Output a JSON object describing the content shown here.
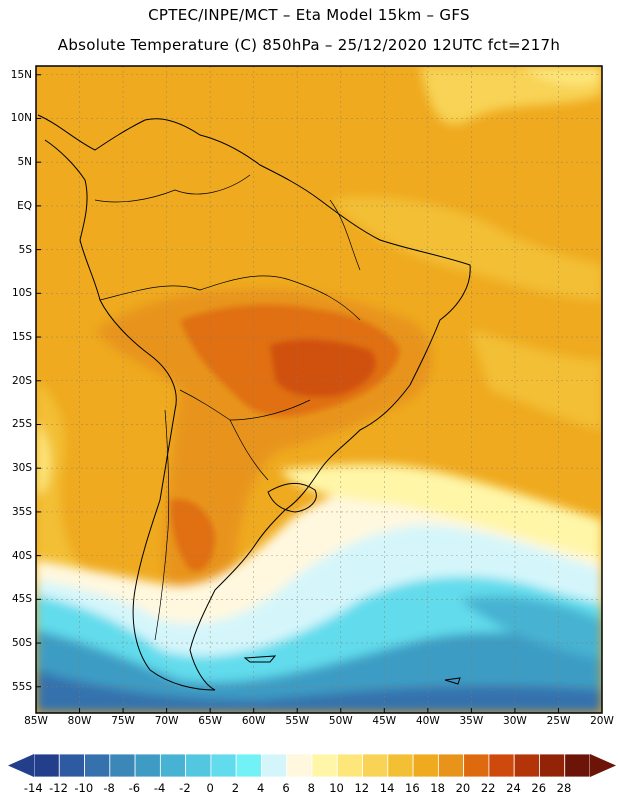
{
  "header": {
    "line1": "CPTEC/INPE/MCT –  Eta Model 15km – GFS",
    "line2": "Absolute Temperature (C) 850hPa – 25/12/2020 12UTC fct=217h"
  },
  "map": {
    "lon_range": [
      -85,
      -20
    ],
    "lat_range": [
      -58,
      16
    ],
    "lat_labels": [
      {
        "lat": 15,
        "text": "15N"
      },
      {
        "lat": 10,
        "text": "10N"
      },
      {
        "lat": 5,
        "text": "5N"
      },
      {
        "lat": 0,
        "text": "EQ"
      },
      {
        "lat": -5,
        "text": "5S"
      },
      {
        "lat": -10,
        "text": "10S"
      },
      {
        "lat": -15,
        "text": "15S"
      },
      {
        "lat": -20,
        "text": "20S"
      },
      {
        "lat": -25,
        "text": "25S"
      },
      {
        "lat": -30,
        "text": "30S"
      },
      {
        "lat": -35,
        "text": "35S"
      },
      {
        "lat": -40,
        "text": "40S"
      },
      {
        "lat": -45,
        "text": "45S"
      },
      {
        "lat": -50,
        "text": "50S"
      },
      {
        "lat": -55,
        "text": "55S"
      }
    ],
    "lon_labels": [
      {
        "lon": -85,
        "text": "85W"
      },
      {
        "lon": -80,
        "text": "80W"
      },
      {
        "lon": -75,
        "text": "75W"
      },
      {
        "lon": -70,
        "text": "70W"
      },
      {
        "lon": -65,
        "text": "65W"
      },
      {
        "lon": -60,
        "text": "60W"
      },
      {
        "lon": -55,
        "text": "55W"
      },
      {
        "lon": -50,
        "text": "50W"
      },
      {
        "lon": -45,
        "text": "45W"
      },
      {
        "lon": -40,
        "text": "40W"
      },
      {
        "lon": -35,
        "text": "35W"
      },
      {
        "lon": -30,
        "text": "30W"
      },
      {
        "lon": -25,
        "text": "25W"
      },
      {
        "lon": -20,
        "text": "20W"
      }
    ]
  },
  "colorbar": {
    "labels": [
      "-14",
      "-12",
      "-10",
      "-8",
      "-6",
      "-4",
      "-2",
      "0",
      "2",
      "4",
      "6",
      "8",
      "10",
      "12",
      "14",
      "16",
      "18",
      "20",
      "22",
      "24",
      "26",
      "28"
    ],
    "colors": [
      "#233e8b",
      "#2d5aa0",
      "#3572ad",
      "#3a87b8",
      "#3e9cc4",
      "#47b2d2",
      "#53c6e0",
      "#62dcec",
      "#72f2f7",
      "#d4f6fb",
      "#fff8df",
      "#fff6a8",
      "#fde67a",
      "#f8d355",
      "#f3bf35",
      "#efaa1f",
      "#e8941a",
      "#de6a10",
      "#cd4a0c",
      "#b33409",
      "#922307",
      "#6d1408"
    ],
    "low_arrow_color": "#233e8b",
    "high_arrow_color": "#6d1408"
  }
}
